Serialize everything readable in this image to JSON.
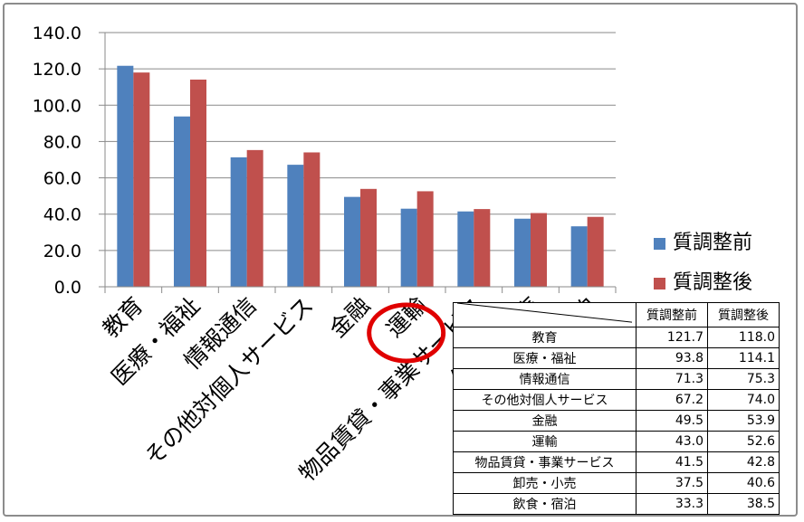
{
  "chart_data": {
    "type": "bar",
    "categories": [
      "教育",
      "医療・福祉",
      "情報通信",
      "その他対個人サービス",
      "金融",
      "運輸",
      "物品賃貸・事業サービス",
      "卸売・小売",
      "飲食・宿泊"
    ],
    "series": [
      {
        "name": "質調整前",
        "values": [
          121.7,
          93.8,
          71.3,
          67.2,
          49.5,
          43.0,
          41.5,
          37.5,
          33.3
        ],
        "color": "#4f81bd"
      },
      {
        "name": "質調整後",
        "values": [
          118.0,
          114.1,
          75.3,
          74.0,
          53.9,
          52.6,
          42.8,
          40.6,
          38.5
        ],
        "color": "#c0504d"
      }
    ],
    "yticks": [
      "0.0",
      "20.0",
      "40.0",
      "60.0",
      "80.0",
      "100.0",
      "120.0",
      "140.0"
    ],
    "ylim": [
      0,
      140
    ],
    "grid": true,
    "legend_position": "right",
    "highlight": {
      "category": "運輸",
      "color": "#e00000"
    }
  },
  "table": {
    "headers": [
      "質調整前",
      "質調整後"
    ],
    "rows": [
      {
        "label": "教育",
        "v1": "121.7",
        "v2": "118.0"
      },
      {
        "label": "医療・福祉",
        "v1": "93.8",
        "v2": "114.1"
      },
      {
        "label": "情報通信",
        "v1": "71.3",
        "v2": "75.3"
      },
      {
        "label": "その他対個人サービス",
        "v1": "67.2",
        "v2": "74.0"
      },
      {
        "label": "金融",
        "v1": "49.5",
        "v2": "53.9"
      },
      {
        "label": "運輸",
        "v1": "43.0",
        "v2": "52.6"
      },
      {
        "label": "物品賃貸・事業サービス",
        "v1": "41.5",
        "v2": "42.8"
      },
      {
        "label": "卸売・小売",
        "v1": "37.5",
        "v2": "40.6"
      },
      {
        "label": "飲食・宿泊",
        "v1": "33.3",
        "v2": "38.5"
      }
    ]
  }
}
